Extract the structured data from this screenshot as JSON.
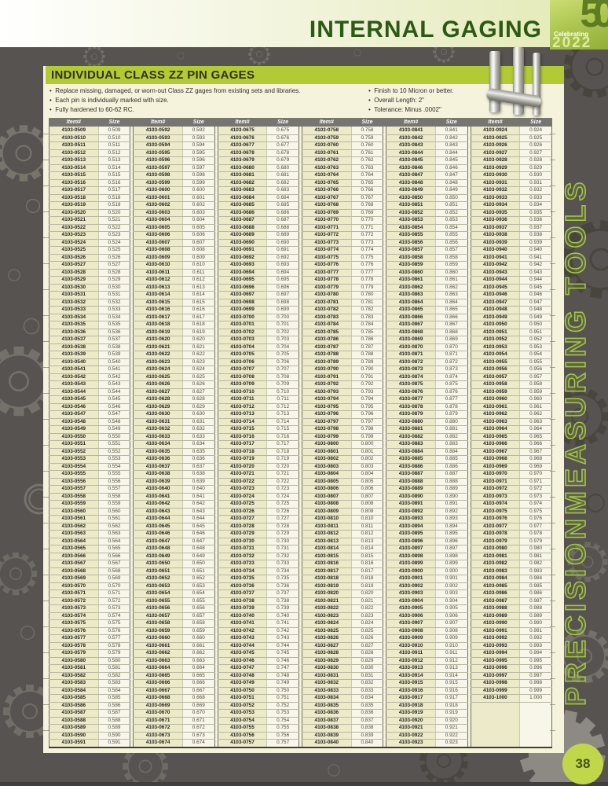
{
  "header": {
    "title": "INTERNAL GAGING",
    "logo_number": "50",
    "logo_caption": "Celebrating",
    "logo_year": "2022"
  },
  "section": {
    "title": "INDIVIDUAL CLASS ZZ PIN GAGES",
    "bullets_left": [
      "Replace missing, damaged, or worn-out Class ZZ gages from existing sets and libraries.",
      "Each pin is individually marked with size.",
      "Fully hardened to 60-62 RC."
    ],
    "bullets_right": [
      "Finish to 10 Micron or better.",
      "Overall Length: 2\"",
      "Tolerance: Minus .0002\""
    ]
  },
  "table": {
    "col_headers": [
      "Item#",
      "Size"
    ],
    "columns": [
      [
        "4103-0509 0.509",
        "4103-0510 0.510",
        "4103-0511 0.511",
        "4103-0512 0.512",
        "4103-0513 0.513",
        "4103-0514 0.514",
        "4103-0515 0.515",
        "4103-0516 0.516",
        "4103-0517 0.517",
        "4103-0518 0.518",
        "4103-0519 0.519",
        "4103-0520 0.520",
        "4103-0521 0.521",
        "4103-0522 0.522",
        "4103-0523 0.523",
        "4103-0524 0.524",
        "4103-0525 0.525",
        "4103-0526 0.526",
        "4103-0527 0.527",
        "4103-0528 0.528",
        "4103-0529 0.529",
        "4103-0530 0.530",
        "4103-0531 0.531",
        "4103-0532 0.532",
        "4103-0533 0.533",
        "4103-0534 0.534",
        "4103-0535 0.535",
        "4103-0536 0.536",
        "4103-0537 0.537",
        "4103-0538 0.538",
        "4103-0539 0.539",
        "4103-0540 0.540",
        "4103-0541 0.541",
        "4103-0542 0.542",
        "4103-0543 0.543",
        "4103-0544 0.544",
        "4103-0545 0.545",
        "4103-0546 0.546",
        "4103-0547 0.547",
        "4103-0548 0.548",
        "4103-0549 0.549",
        "4103-0550 0.550",
        "4103-0551 0.551",
        "4103-0552 0.552",
        "4103-0553 0.553",
        "4103-0554 0.554",
        "4103-0555 0.555",
        "4103-0556 0.556",
        "4103-0557 0.557",
        "4103-0558 0.558",
        "4103-0559 0.559",
        "4103-0560 0.560",
        "4103-0561 0.561",
        "4103-0562 0.562",
        "4103-0563 0.563",
        "4103-0564 0.564",
        "4103-0565 0.565",
        "4103-0566 0.566",
        "4103-0567 0.567",
        "4103-0568 0.568",
        "4103-0569 0.569",
        "4103-0570 0.570",
        "4103-0571 0.571",
        "4103-0572 0.572",
        "4103-0573 0.573",
        "4103-0574 0.574",
        "4103-0575 0.575",
        "4103-0576 0.576",
        "4103-0577 0.577",
        "4103-0578 0.578",
        "4103-0579 0.579",
        "4103-0580 0.580",
        "4103-0581 0.581",
        "4103-0582 0.582",
        "4103-0583 0.583",
        "4103-0584 0.584",
        "4103-0585 0.585",
        "4103-0586 0.586",
        "4103-0587 0.587",
        "4103-0588 0.588",
        "4103-0589 0.589",
        "4103-0590 0.590",
        "4103-0591 0.591"
      ],
      [
        "4103-0592 0.592",
        "4103-0593 0.593",
        "4103-0594 0.594",
        "4103-0595 0.595",
        "4103-0596 0.596",
        "4103-0597 0.597",
        "4103-0598 0.598",
        "4103-0599 0.599",
        "4103-0600 0.600",
        "4103-0601 0.601",
        "4103-0602 0.602",
        "4103-0603 0.603",
        "4103-0604 0.604",
        "4103-0605 0.605",
        "4103-0606 0.606",
        "4103-0607 0.607",
        "4103-0608 0.608",
        "4103-0609 0.609",
        "4103-0610 0.610",
        "4103-0611 0.611",
        "4103-0612 0.612",
        "4103-0613 0.613",
        "4103-0614 0.614",
        "4103-0615 0.615",
        "4103-0616 0.616",
        "4103-0617 0.617",
        "4103-0618 0.618",
        "4103-0619 0.619",
        "4103-0620 0.620",
        "4103-0621 0.621",
        "4103-0622 0.622",
        "4103-0623 0.623",
        "4103-0624 0.624",
        "4103-0625 0.625",
        "4103-0626 0.626",
        "4103-0627 0.627",
        "4103-0628 0.628",
        "4103-0629 0.629",
        "4103-0630 0.630",
        "4103-0631 0.631",
        "4103-0632 0.632",
        "4103-0633 0.633",
        "4103-0634 0.634",
        "4103-0635 0.635",
        "4103-0636 0.636",
        "4103-0637 0.637",
        "4103-0638 0.638",
        "4103-0639 0.639",
        "4103-0640 0.640",
        "4103-0641 0.641",
        "4103-0642 0.642",
        "4103-0643 0.643",
        "4103-0644 0.644",
        "4103-0645 0.645",
        "4103-0646 0.646",
        "4103-0647 0.647",
        "4103-0648 0.648",
        "4103-0649 0.649",
        "4103-0650 0.650",
        "4103-0651 0.651",
        "4103-0652 0.652",
        "4103-0653 0.653",
        "4103-0654 0.654",
        "4103-0655 0.655",
        "4103-0656 0.656",
        "4103-0657 0.657",
        "4103-0658 0.658",
        "4103-0659 0.659",
        "4103-0660 0.660",
        "4103-0661 0.661",
        "4103-0662 0.662",
        "4103-0663 0.663",
        "4103-0664 0.664",
        "4103-0665 0.665",
        "4103-0666 0.666",
        "4103-0667 0.667",
        "4103-0668 0.668",
        "4103-0669 0.669",
        "4103-0670 0.670",
        "4103-0671 0.671",
        "4103-0672 0.672",
        "4103-0673 0.673",
        "4103-0674 0.674"
      ],
      [
        "4103-0675 0.675",
        "4103-0676 0.676",
        "4103-0677 0.677",
        "4103-0678 0.678",
        "4103-0679 0.679",
        "4103-0680 0.680",
        "4103-0681 0.681",
        "4103-0682 0.682",
        "4103-0683 0.683",
        "4103-0684 0.684",
        "4103-0685 0.685",
        "4103-0686 0.686",
        "4103-0687 0.687",
        "4103-0688 0.688",
        "4103-0689 0.689",
        "4103-0690 0.690",
        "4103-0691 0.691",
        "4103-0692 0.692",
        "4103-0693 0.693",
        "4103-0694 0.694",
        "4103-0695 0.695",
        "4103-0696 0.696",
        "4103-0697 0.697",
        "4103-0698 0.698",
        "4103-0699 0.699",
        "4103-0700 0.700",
        "4103-0701 0.701",
        "4103-0702 0.702",
        "4103-0703 0.703",
        "4103-0704 0.704",
        "4103-0705 0.705",
        "4103-0706 0.706",
        "4103-0707 0.707",
        "4103-0708 0.708",
        "4103-0709 0.709",
        "4103-0710 0.710",
        "4103-0711 0.711",
        "4103-0712 0.712",
        "4103-0713 0.713",
        "4103-0714 0.714",
        "4103-0715 0.715",
        "4103-0716 0.716",
        "4103-0717 0.717",
        "4103-0718 0.718",
        "4103-0719 0.719",
        "4103-0720 0.720",
        "4103-0721 0.721",
        "4103-0722 0.722",
        "4103-0723 0.723",
        "4103-0724 0.724",
        "4103-0725 0.725",
        "4103-0726 0.726",
        "4103-0727 0.727",
        "4103-0728 0.728",
        "4103-0729 0.729",
        "4103-0730 0.730",
        "4103-0731 0.731",
        "4103-0732 0.732",
        "4103-0733 0.733",
        "4103-0734 0.734",
        "4103-0735 0.735",
        "4103-0736 0.736",
        "4103-0737 0.737",
        "4103-0738 0.738",
        "4103-0739 0.739",
        "4103-0740 0.740",
        "4103-0741 0.741",
        "4103-0742 0.742",
        "4103-0743 0.743",
        "4103-0744 0.744",
        "4103-0745 0.745",
        "4103-0746 0.746",
        "4103-0747 0.747",
        "4103-0748 0.748",
        "4103-0749 0.749",
        "4103-0750 0.750",
        "4103-0751 0.751",
        "4103-0752 0.752",
        "4103-0753 0.753",
        "4103-0754 0.754",
        "4103-0755 0.755",
        "4103-0756 0.756",
        "4103-0757 0.757"
      ],
      [
        "4103-0758 0.758",
        "4103-0759 0.759",
        "4103-0760 0.760",
        "4103-0761 0.761",
        "4103-0762 0.762",
        "4103-0763 0.763",
        "4103-0764 0.764",
        "4103-0765 0.765",
        "4103-0766 0.766",
        "4103-0767 0.767",
        "4103-0768 0.768",
        "4103-0769 0.769",
        "4103-0770 0.770",
        "4103-0771 0.771",
        "4103-0772 0.772",
        "4103-0773 0.773",
        "4103-0774 0.774",
        "4103-0775 0.775",
        "4103-0776 0.776",
        "4103-0777 0.777",
        "4103-0778 0.778",
        "4103-0779 0.779",
        "4103-0780 0.780",
        "4103-0781 0.781",
        "4103-0782 0.782",
        "4103-0783 0.783",
        "4103-0784 0.784",
        "4103-0785 0.785",
        "4103-0786 0.786",
        "4103-0787 0.787",
        "4103-0788 0.788",
        "4103-0789 0.789",
        "4103-0790 0.790",
        "4103-0791 0.791",
        "4103-0792 0.792",
        "4103-0793 0.793",
        "4103-0794 0.794",
        "4103-0795 0.795",
        "4103-0796 0.796",
        "4103-0797 0.797",
        "4103-0798 0.798",
        "4103-0799 0.799",
        "4103-0800 0.800",
        "4103-0801 0.801",
        "4103-0802 0.802",
        "4103-0803 0.803",
        "4103-0804 0.804",
        "4103-0805 0.805",
        "4103-0806 0.806",
        "4103-0807 0.807",
        "4103-0808 0.808",
        "4103-0809 0.809",
        "4103-0810 0.810",
        "4103-0811 0.811",
        "4103-0812 0.812",
        "4103-0813 0.813",
        "4103-0814 0.814",
        "4103-0815 0.815",
        "4103-0816 0.816",
        "4103-0817 0.817",
        "4103-0818 0.818",
        "4103-0819 0.819",
        "4103-0820 0.820",
        "4103-0821 0.821",
        "4103-0822 0.822",
        "4103-0823 0.823",
        "4103-0824 0.824",
        "4103-0825 0.825",
        "4103-0826 0.826",
        "4103-0827 0.827",
        "4103-0828 0.828",
        "4103-0829 0.829",
        "4103-0830 0.830",
        "4103-0831 0.831",
        "4103-0832 0.832",
        "4103-0833 0.833",
        "4103-0834 0.834",
        "4103-0835 0.835",
        "4103-0836 0.836",
        "4103-0837 0.837",
        "4103-0838 0.838",
        "4103-0839 0.839",
        "4103-0840 0.840"
      ],
      [
        "4103-0841 0.841",
        "4103-0842 0.842",
        "4103-0843 0.843",
        "4103-0844 0.844",
        "4103-0845 0.845",
        "4103-0846 0.846",
        "4103-0847 0.847",
        "4103-0848 0.848",
        "4103-0849 0.849",
        "4103-0850 0.850",
        "4103-0851 0.851",
        "4103-0852 0.852",
        "4103-0853 0.853",
        "4103-0854 0.854",
        "4103-0855 0.855",
        "4103-0856 0.856",
        "4103-0857 0.857",
        "4103-0858 0.858",
        "4103-0859 0.859",
        "4103-0860 0.860",
        "4103-0861 0.861",
        "4103-0862 0.862",
        "4103-0863 0.863",
        "4103-0864 0.864",
        "4103-0865 0.865",
        "4103-0866 0.866",
        "4103-0867 0.867",
        "4103-0868 0.868",
        "4103-0869 0.869",
        "4103-0870 0.870",
        "4103-0871 0.871",
        "4103-0872 0.872",
        "4103-0873 0.873",
        "4103-0874 0.874",
        "4103-0875 0.875",
        "4103-0876 0.876",
        "4103-0877 0.877",
        "4103-0878 0.878",
        "4103-0879 0.879",
        "4103-0880 0.880",
        "4103-0881 0.881",
        "4103-0882 0.882",
        "4103-0883 0.883",
        "4103-0884 0.884",
        "4103-0885 0.885",
        "4103-0886 0.886",
        "4103-0887 0.887",
        "4103-0888 0.888",
        "4103-0889 0.889",
        "4103-0890 0.890",
        "4103-0891 0.891",
        "4103-0892 0.892",
        "4103-0893 0.893",
        "4103-0894 0.894",
        "4103-0895 0.895",
        "4103-0896 0.896",
        "4103-0897 0.897",
        "4103-0898 0.898",
        "4103-0899 0.899",
        "4103-0900 0.900",
        "4103-0901 0.901",
        "4103-0902 0.902",
        "4103-0903 0.903",
        "4103-0904 0.904",
        "4103-0905 0.905",
        "4103-0906 0.906",
        "4103-0907 0.907",
        "4103-0908 0.908",
        "4103-0909 0.909",
        "4103-0910 0.910",
        "4103-0911 0.911",
        "4103-0912 0.912",
        "4103-0913 0.913",
        "4103-0914 0.914",
        "4103-0915 0.915",
        "4103-0916 0.916",
        "4103-0917 0.917",
        "4103-0918 0.918",
        "4103-0919 0.919",
        "4103-0920 0.920",
        "4103-0921 0.921",
        "4103-0922 0.922",
        "4103-0923 0.923"
      ],
      [
        "4103-0924 0.924",
        "4103-0925 0.925",
        "4103-0926 0.926",
        "4103-0927 0.927",
        "4103-0928 0.928",
        "4103-0929 0.929",
        "4103-0930 0.930",
        "4103-0931 0.931",
        "4103-0932 0.932",
        "4103-0933 0.933",
        "4103-0934 0.934",
        "4103-0935 0.935",
        "4103-0936 0.936",
        "4103-0937 0.937",
        "4103-0938 0.938",
        "4103-0939 0.939",
        "4103-0940 0.940",
        "4103-0941 0.941",
        "4103-0942 0.942",
        "4103-0943 0.943",
        "4103-0944 0.944",
        "4103-0945 0.945",
        "4103-0946 0.946",
        "4103-0947 0.947",
        "4103-0948 0.948",
        "4103-0949 0.949",
        "4103-0950 0.950",
        "4103-0951 0.951",
        "4103-0952 0.952",
        "4103-0953 0.953",
        "4103-0954 0.954",
        "4103-0955 0.955",
        "4103-0956 0.956",
        "4103-0957 0.957",
        "4103-0958 0.958",
        "4103-0959 0.959",
        "4103-0960 0.960",
        "4103-0961 0.961",
        "4103-0962 0.962",
        "4103-0963 0.963",
        "4103-0964 0.964",
        "4103-0965 0.965",
        "4103-0966 0.966",
        "4103-0967 0.967",
        "4103-0968 0.968",
        "4103-0969 0.969",
        "4103-0970 0.970",
        "4103-0971 0.971",
        "4103-0972 0.972",
        "4103-0973 0.973",
        "4103-0974 0.974",
        "4103-0975 0.975",
        "4103-0976 0.976",
        "4103-0977 0.977",
        "4103-0978 0.978",
        "4103-0979 0.979",
        "4103-0980 0.980",
        "4103-0981 0.981",
        "4103-0982 0.982",
        "4103-0983 0.983",
        "4103-0984 0.984",
        "4103-0985 0.985",
        "4103-0986 0.986",
        "4103-0987 0.987",
        "4103-0988 0.988",
        "4103-0989 0.989",
        "4103-0990 0.990",
        "4103-0991 0.991",
        "4103-0992 0.992",
        "4103-0993 0.993",
        "4103-0994 0.994",
        "4103-0995 0.995",
        "4103-0996 0.996",
        "4103-0997 0.997",
        "4103-0998 0.998",
        "4103-0999 0.999",
        "4103-1000 1.000",
        "",
        "",
        "",
        "",
        "",
        ""
      ]
    ]
  },
  "sidebar": {
    "vertical_text": "PRECISIONMEASURING TOOLS"
  },
  "footer": {
    "page_number": "38"
  },
  "colors": {
    "accent_green": "#b2cb35",
    "dark_green": "#2c5a16",
    "logo_green": "#90af3a",
    "table_header_gray": "#76756f",
    "item_cell": "#edeac9",
    "size_cell": "#f8f6e8",
    "page_cream": "#f5f3dc",
    "background_gray": "#565350",
    "page_number_circle": "#c1d74a"
  }
}
